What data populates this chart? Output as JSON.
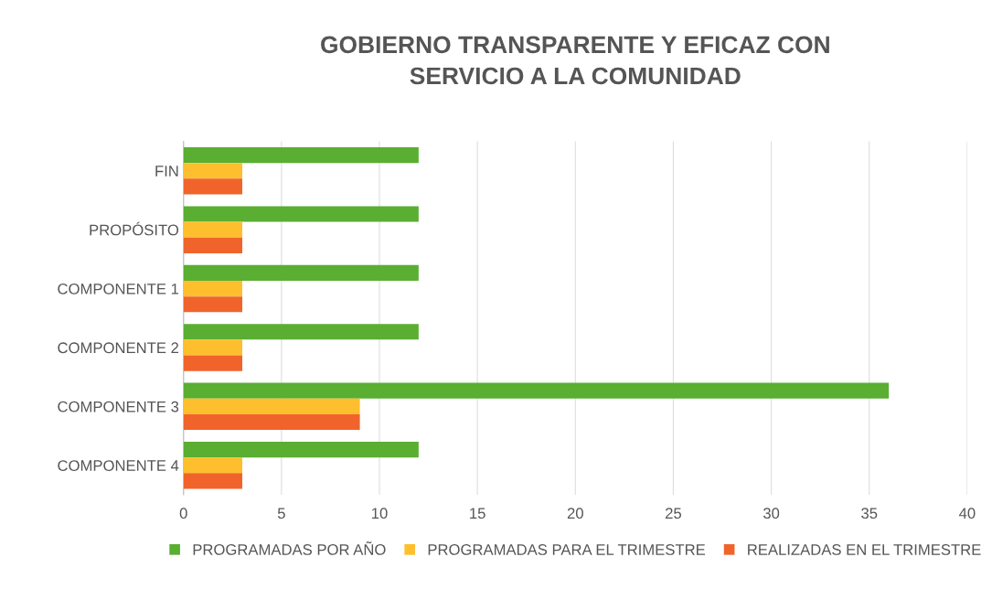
{
  "chart_data": {
    "type": "bar",
    "orientation": "horizontal",
    "title": "GOBIERNO TRANSPARENTE Y EFICAZ CON\nSERVICIO A LA COMUNIDAD",
    "categories": [
      "FIN",
      "PROPÓSITO",
      "COMPONENTE 1",
      "COMPONENTE 2",
      "COMPONENTE 3",
      "COMPONENTE 4"
    ],
    "series": [
      {
        "name": "PROGRAMADAS POR AÑO",
        "color": "#5aae32",
        "values": [
          12,
          12,
          12,
          12,
          36,
          12
        ]
      },
      {
        "name": "PROGRAMADAS PARA EL TRIMESTRE",
        "color": "#fdbf2d",
        "values": [
          3,
          3,
          3,
          3,
          9,
          3
        ]
      },
      {
        "name": "REALIZADAS EN EL TRIMESTRE",
        "color": "#f0642c",
        "values": [
          3,
          3,
          3,
          3,
          9,
          3
        ]
      }
    ],
    "xlim": [
      0,
      40
    ],
    "xticks": [
      0,
      5,
      10,
      15,
      20,
      25,
      30,
      35,
      40
    ],
    "grid": "x",
    "legend": "bottom"
  }
}
